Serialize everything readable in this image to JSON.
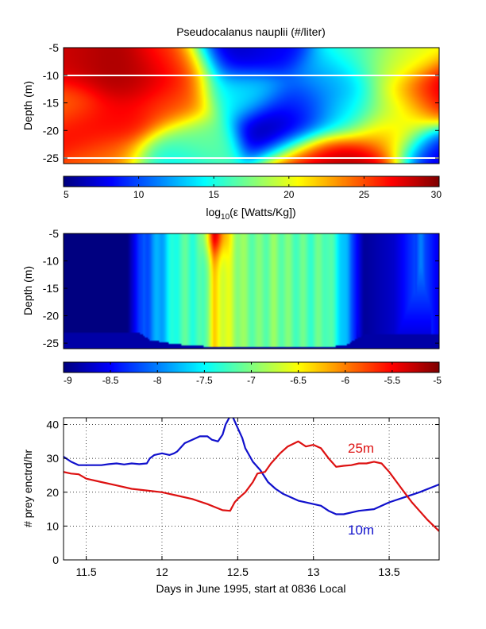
{
  "chart_data": [
    {
      "type": "heatmap",
      "title": "Pseudocalanus nauplii (#/liter)",
      "ylabel": "Depth (m)",
      "yticks": [
        "-5",
        "-10",
        "-15",
        "-20",
        "-25"
      ],
      "ylim": [
        -26,
        -5
      ],
      "white_lines_depth": [
        -10,
        -25
      ],
      "colorbar": {
        "ticks": [
          "5",
          "10",
          "15",
          "20",
          "25",
          "30"
        ],
        "range": [
          5,
          30
        ],
        "label": "log10(ε [Watts/Kg])"
      },
      "blobs": [
        {
          "t": 0.0,
          "d": -8,
          "v": 28
        },
        {
          "t": 0.1,
          "d": -9,
          "v": 29
        },
        {
          "t": 0.2,
          "d": -11,
          "v": 29
        },
        {
          "t": 0.3,
          "d": -8,
          "v": 26
        },
        {
          "t": 0.0,
          "d": -15,
          "v": 24
        },
        {
          "t": 0.05,
          "d": -20,
          "v": 27
        },
        {
          "t": 0.15,
          "d": -18,
          "v": 27
        },
        {
          "t": 0.28,
          "d": -15,
          "v": 25
        },
        {
          "t": 0.12,
          "d": -25,
          "v": 24
        },
        {
          "t": 0.35,
          "d": -22,
          "v": 17
        },
        {
          "t": 0.28,
          "d": -26,
          "v": 14
        },
        {
          "t": 0.45,
          "d": -6,
          "v": 6
        },
        {
          "t": 0.55,
          "d": -5,
          "v": 8
        },
        {
          "t": 0.48,
          "d": -13,
          "v": 14
        },
        {
          "t": 0.58,
          "d": -20,
          "v": 5
        },
        {
          "t": 0.63,
          "d": -16,
          "v": 9
        },
        {
          "t": 0.66,
          "d": -25,
          "v": 28
        },
        {
          "t": 0.78,
          "d": -26,
          "v": 29
        },
        {
          "t": 0.72,
          "d": -10,
          "v": 12
        },
        {
          "t": 0.78,
          "d": -6,
          "v": 16
        },
        {
          "t": 0.88,
          "d": -8,
          "v": 20
        },
        {
          "t": 0.98,
          "d": -14,
          "v": 29
        },
        {
          "t": 0.9,
          "d": -16,
          "v": 18
        },
        {
          "t": 0.87,
          "d": -21,
          "v": 23
        },
        {
          "t": 0.99,
          "d": -24,
          "v": 7
        },
        {
          "t": 0.75,
          "d": -17,
          "v": 14
        }
      ]
    },
    {
      "type": "heatmap",
      "ylabel": "Depth (m)",
      "yticks": [
        "-5",
        "-10",
        "-15",
        "-20",
        "-25"
      ],
      "ylim": [
        -26,
        -5
      ],
      "colorbar": {
        "ticks": [
          "-9",
          "-8.5",
          "-8",
          "-7.5",
          "-7",
          "-6.5",
          "-6",
          "-5.5",
          "-5"
        ],
        "range": [
          -9,
          -5
        ]
      },
      "profile_x": [
        0,
        0.17,
        0.2,
        0.26,
        0.31,
        0.37,
        0.4,
        0.48,
        0.52,
        0.56,
        0.6,
        0.66,
        0.7,
        0.74,
        0.8,
        0.88,
        0.95,
        1.0
      ],
      "profile_v": [
        -9,
        -9,
        -8.3,
        -7.8,
        -7.2,
        -7.3,
        -6.4,
        -7.0,
        -7.1,
        -7.0,
        -7.1,
        -7.2,
        -7.1,
        -7.6,
        -8.9,
        -8.7,
        -8.1,
        -8.6
      ],
      "bottom_depth_x": [
        0,
        0.2,
        0.23,
        0.3,
        0.4,
        0.56,
        0.7,
        0.75,
        0.8,
        1.0
      ],
      "bottom_depth": [
        -23,
        -23,
        -24.4,
        -25.2,
        -25.7,
        -25.7,
        -25.7,
        -25.4,
        -23.5,
        -23.5
      ]
    },
    {
      "type": "line",
      "xlabel": "Days in June 1995, start at 0836 Local",
      "ylabel": "# prey enctrd/hr",
      "xlim": [
        11.35,
        13.83
      ],
      "ylim": [
        0,
        42
      ],
      "xticks": [
        "11.5",
        "12",
        "12.5",
        "13",
        "13.5"
      ],
      "yticks": [
        "0",
        "10",
        "20",
        "30",
        "40"
      ],
      "grid": true,
      "series": [
        {
          "name": "10m",
          "color": "#1010cc",
          "x": [
            11.35,
            11.4,
            11.45,
            11.5,
            11.55,
            11.6,
            11.65,
            11.7,
            11.75,
            11.8,
            11.85,
            11.9,
            11.92,
            11.95,
            12.0,
            12.05,
            12.08,
            12.1,
            12.15,
            12.2,
            12.25,
            12.3,
            12.33,
            12.37,
            12.4,
            12.42,
            12.45,
            12.47,
            12.5,
            12.53,
            12.55,
            12.6,
            12.65,
            12.7,
            12.75,
            12.8,
            12.9,
            13.0,
            13.05,
            13.1,
            13.15,
            13.2,
            13.25,
            13.3,
            13.4,
            13.5,
            13.6,
            13.7,
            13.83
          ],
          "y": [
            30.5,
            29,
            28,
            28,
            28,
            28,
            28.3,
            28.5,
            28.2,
            28.5,
            28.3,
            28.5,
            30,
            31,
            31.5,
            31,
            31.5,
            32,
            34.5,
            35.5,
            36.5,
            36.5,
            35.5,
            35,
            37,
            40,
            42.5,
            42,
            39,
            36,
            33,
            29,
            26.5,
            23,
            21,
            19.5,
            17.5,
            16.5,
            16,
            14.5,
            13.5,
            13.5,
            14,
            14.5,
            15,
            17,
            18.5,
            20,
            22.3
          ]
        },
        {
          "name": "25m",
          "color": "#dd1111",
          "x": [
            11.35,
            11.4,
            11.45,
            11.5,
            11.6,
            11.7,
            11.8,
            11.9,
            12.0,
            12.1,
            12.2,
            12.3,
            12.4,
            12.45,
            12.48,
            12.5,
            12.55,
            12.6,
            12.63,
            12.68,
            12.72,
            12.78,
            12.83,
            12.9,
            12.95,
            13.0,
            13.05,
            13.1,
            13.15,
            13.2,
            13.25,
            13.3,
            13.35,
            13.4,
            13.45,
            13.5,
            13.55,
            13.6,
            13.65,
            13.7,
            13.75,
            13.83
          ],
          "y": [
            26,
            25.5,
            25.3,
            24,
            23,
            22,
            21,
            20.5,
            20,
            19,
            18,
            16.5,
            14.7,
            14.5,
            17,
            18,
            20,
            23,
            25.5,
            26,
            28.5,
            31.5,
            33.5,
            35,
            33.5,
            34,
            33,
            30,
            27.5,
            27.8,
            28,
            28.5,
            28.5,
            29,
            28.5,
            26,
            23,
            20,
            17,
            14.5,
            12,
            8.5
          ]
        }
      ],
      "series_labels": [
        "10m",
        "25m"
      ]
    }
  ]
}
